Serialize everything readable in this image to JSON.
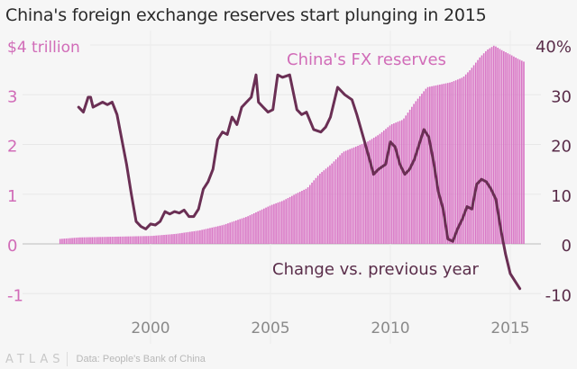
{
  "chart_data": {
    "type": "bar+line",
    "title": "China's foreign exchange reserves start plunging in 2015",
    "left_axis": {
      "label_top": "$4 trillion",
      "ticks": [
        {
          "value": 4,
          "label": "$4 trillion"
        },
        {
          "value": 3,
          "label": "3"
        },
        {
          "value": 2,
          "label": "2"
        },
        {
          "value": 1,
          "label": "1"
        },
        {
          "value": 0,
          "label": "0"
        },
        {
          "value": -1,
          "label": "-1"
        }
      ],
      "range": [
        -1,
        4
      ],
      "color": "#d16cb8"
    },
    "right_axis": {
      "ticks": [
        {
          "value": 40,
          "label": "40%"
        },
        {
          "value": 30,
          "label": "30"
        },
        {
          "value": 20,
          "label": "20"
        },
        {
          "value": 10,
          "label": "10"
        },
        {
          "value": 0,
          "label": "0"
        },
        {
          "value": -10,
          "label": "-10"
        }
      ],
      "range": [
        -10,
        40
      ],
      "color": "#5a2d4a"
    },
    "x_axis": {
      "ticks": [
        {
          "value": 2000,
          "label": "2000"
        },
        {
          "value": 2005,
          "label": "2005"
        },
        {
          "value": 2010,
          "label": "2010"
        },
        {
          "value": 2015,
          "label": "2015"
        }
      ],
      "range": [
        1994.0,
        2016.3
      ]
    },
    "grid": true,
    "series": [
      {
        "name": "China's FX reserves",
        "type": "bar",
        "unit": "trillion USD",
        "color": "#d873c4",
        "points": [
          [
            1996.2,
            0.1
          ],
          [
            1997.0,
            0.13
          ],
          [
            1998.0,
            0.14
          ],
          [
            1999.0,
            0.15
          ],
          [
            2000.0,
            0.16
          ],
          [
            2001.0,
            0.2
          ],
          [
            2002.0,
            0.27
          ],
          [
            2003.0,
            0.38
          ],
          [
            2004.0,
            0.55
          ],
          [
            2005.0,
            0.78
          ],
          [
            2005.5,
            0.87
          ],
          [
            2006.0,
            1.0
          ],
          [
            2006.5,
            1.12
          ],
          [
            2007.0,
            1.4
          ],
          [
            2007.5,
            1.6
          ],
          [
            2008.0,
            1.85
          ],
          [
            2008.5,
            1.95
          ],
          [
            2009.0,
            2.05
          ],
          [
            2009.5,
            2.2
          ],
          [
            2010.0,
            2.4
          ],
          [
            2010.5,
            2.5
          ],
          [
            2011.0,
            2.85
          ],
          [
            2011.5,
            3.15
          ],
          [
            2012.0,
            3.2
          ],
          [
            2012.5,
            3.25
          ],
          [
            2013.0,
            3.35
          ],
          [
            2013.3,
            3.5
          ],
          [
            2013.7,
            3.75
          ],
          [
            2014.0,
            3.9
          ],
          [
            2014.3,
            3.99
          ],
          [
            2014.6,
            3.9
          ],
          [
            2015.0,
            3.8
          ],
          [
            2015.3,
            3.72
          ],
          [
            2015.6,
            3.65
          ]
        ]
      },
      {
        "name": "Change vs. previous year",
        "type": "line",
        "unit": "percent",
        "color": "#6a2f54",
        "points": [
          [
            1997.0,
            27.5
          ],
          [
            1997.2,
            26.5
          ],
          [
            1997.4,
            29.5
          ],
          [
            1997.5,
            29.5
          ],
          [
            1997.6,
            27.5
          ],
          [
            1997.8,
            28.0
          ],
          [
            1998.0,
            28.5
          ],
          [
            1998.2,
            28.0
          ],
          [
            1998.4,
            28.5
          ],
          [
            1998.6,
            26.0
          ],
          [
            1998.8,
            21.0
          ],
          [
            1999.0,
            16.0
          ],
          [
            1999.2,
            10.0
          ],
          [
            1999.4,
            4.5
          ],
          [
            1999.6,
            3.5
          ],
          [
            1999.8,
            3.0
          ],
          [
            2000.0,
            4.0
          ],
          [
            2000.2,
            3.8
          ],
          [
            2000.4,
            4.5
          ],
          [
            2000.6,
            6.5
          ],
          [
            2000.8,
            6.0
          ],
          [
            2001.0,
            6.5
          ],
          [
            2001.2,
            6.2
          ],
          [
            2001.4,
            6.8
          ],
          [
            2001.6,
            5.5
          ],
          [
            2001.8,
            5.5
          ],
          [
            2002.0,
            7.0
          ],
          [
            2002.2,
            11.0
          ],
          [
            2002.4,
            12.5
          ],
          [
            2002.6,
            15.0
          ],
          [
            2002.8,
            21.0
          ],
          [
            2003.0,
            22.5
          ],
          [
            2003.2,
            22.0
          ],
          [
            2003.4,
            25.5
          ],
          [
            2003.6,
            24.0
          ],
          [
            2003.8,
            27.5
          ],
          [
            2004.0,
            28.5
          ],
          [
            2004.2,
            29.5
          ],
          [
            2004.4,
            34.0
          ],
          [
            2004.5,
            28.5
          ],
          [
            2004.7,
            27.5
          ],
          [
            2004.9,
            26.5
          ],
          [
            2005.1,
            27.0
          ],
          [
            2005.3,
            34.0
          ],
          [
            2005.5,
            33.5
          ],
          [
            2005.8,
            34.0
          ],
          [
            2006.1,
            27.0
          ],
          [
            2006.3,
            26.0
          ],
          [
            2006.5,
            26.5
          ],
          [
            2006.8,
            23.0
          ],
          [
            2007.1,
            22.5
          ],
          [
            2007.3,
            23.5
          ],
          [
            2007.5,
            25.5
          ],
          [
            2007.8,
            31.5
          ],
          [
            2008.1,
            30.0
          ],
          [
            2008.4,
            29.0
          ],
          [
            2008.6,
            26.0
          ],
          [
            2008.9,
            21.0
          ],
          [
            2009.1,
            17.5
          ],
          [
            2009.3,
            14.0
          ],
          [
            2009.5,
            15.0
          ],
          [
            2009.8,
            16.0
          ],
          [
            2010.0,
            20.5
          ],
          [
            2010.2,
            19.5
          ],
          [
            2010.4,
            16.0
          ],
          [
            2010.6,
            14.0
          ],
          [
            2010.8,
            15.0
          ],
          [
            2011.0,
            17.0
          ],
          [
            2011.2,
            20.0
          ],
          [
            2011.4,
            23.0
          ],
          [
            2011.6,
            21.5
          ],
          [
            2011.8,
            16.5
          ],
          [
            2012.0,
            10.5
          ],
          [
            2012.2,
            7.0
          ],
          [
            2012.4,
            1.0
          ],
          [
            2012.6,
            0.5
          ],
          [
            2012.8,
            3.0
          ],
          [
            2013.0,
            5.0
          ],
          [
            2013.2,
            7.5
          ],
          [
            2013.4,
            7.0
          ],
          [
            2013.6,
            12.0
          ],
          [
            2013.8,
            13.0
          ],
          [
            2014.0,
            12.5
          ],
          [
            2014.2,
            11.0
          ],
          [
            2014.4,
            9.0
          ],
          [
            2014.6,
            3.0
          ],
          [
            2014.8,
            -2.0
          ],
          [
            2015.0,
            -6.0
          ],
          [
            2015.2,
            -7.5
          ],
          [
            2015.4,
            -9.0
          ]
        ]
      }
    ],
    "annotations": [
      {
        "text": "China's FX reserves",
        "series": "China's FX reserves"
      },
      {
        "text": "Change vs. previous year",
        "series": "Change vs. previous year"
      }
    ]
  },
  "footer": {
    "logo": "ATLAS",
    "source": "Data: People's Bank of China"
  }
}
